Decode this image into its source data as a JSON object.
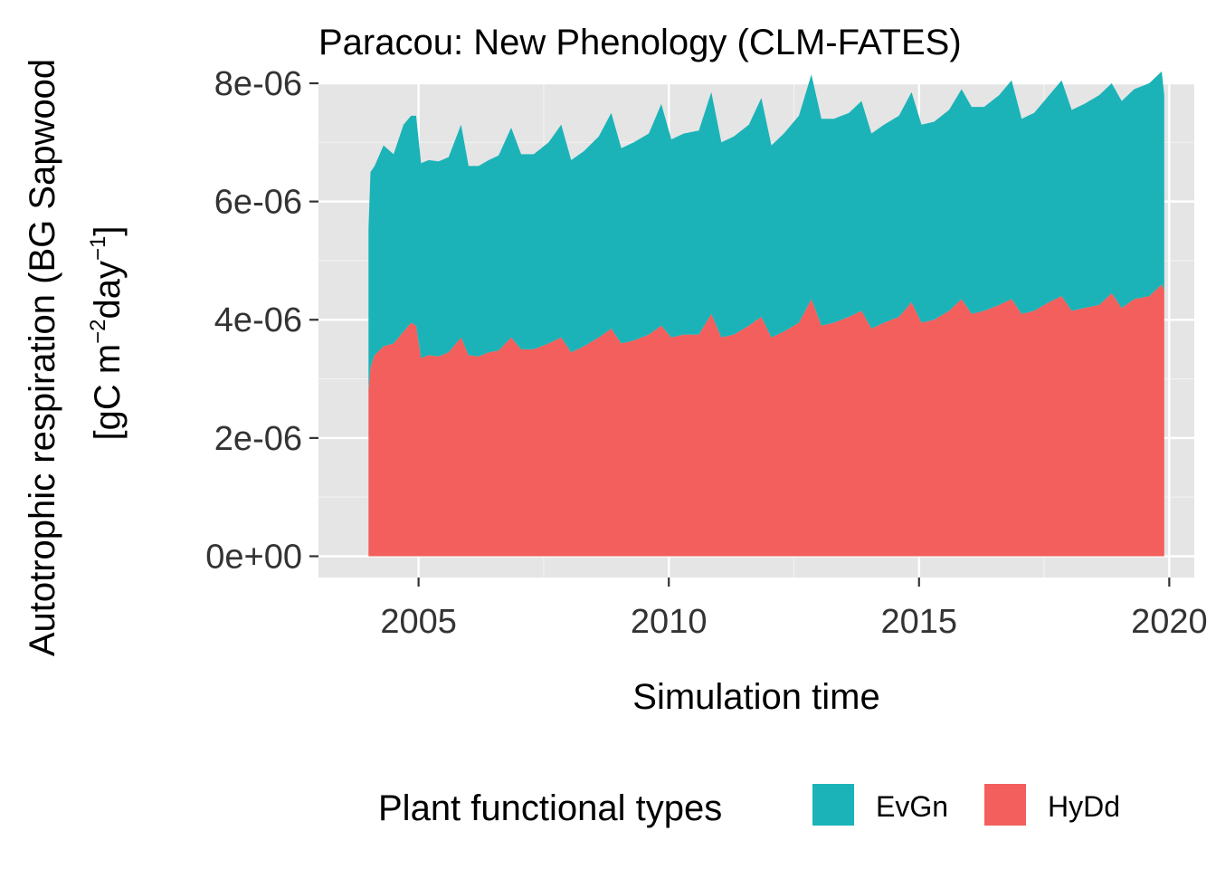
{
  "chart_data": {
    "type": "area",
    "stacked": true,
    "title": "Paracou: New Phenology (CLM-FATES)",
    "xlabel": "Simulation time",
    "ylabel_line1": "Autotrophic respiration (BG Sapwood",
    "ylabel_line2_main": "[gC m",
    "ylabel_line2_sup1": "−2",
    "ylabel_line2_mid": "day",
    "ylabel_line2_sup2": "−1",
    "ylabel_line2_end": "]",
    "xlim": [
      2003.0,
      2020.5
    ],
    "ylim": [
      -3.6e-07,
      8e-06
    ],
    "x_ticks": [
      2005,
      2010,
      2015,
      2020
    ],
    "x_tick_labels": [
      "2005",
      "2010",
      "2015",
      "2020"
    ],
    "y_ticks": [
      0,
      2e-06,
      4e-06,
      6e-06,
      8e-06
    ],
    "y_tick_labels": [
      "0e+00",
      "2e-06",
      "4e-06",
      "6e-06",
      "8e-06"
    ],
    "grid": true,
    "background": "#e5e5e5",
    "legend": {
      "title": "Plant functional types",
      "position": "bottom",
      "entries": [
        "EvGn",
        "HyDd"
      ]
    },
    "series": [
      {
        "name": "HyDd",
        "color": "#f25f5c",
        "x": [
          2004.0,
          2004.04,
          2004.12,
          2004.3,
          2004.5,
          2004.7,
          2004.85,
          2004.95,
          2005.05,
          2005.2,
          2005.4,
          2005.6,
          2005.85,
          2006.0,
          2006.2,
          2006.4,
          2006.6,
          2006.85,
          2007.05,
          2007.3,
          2007.6,
          2007.85,
          2008.05,
          2008.3,
          2008.6,
          2008.85,
          2009.05,
          2009.3,
          2009.6,
          2009.85,
          2010.05,
          2010.3,
          2010.6,
          2010.85,
          2011.05,
          2011.3,
          2011.6,
          2011.85,
          2012.05,
          2012.3,
          2012.6,
          2012.85,
          2013.05,
          2013.3,
          2013.6,
          2013.85,
          2014.05,
          2014.3,
          2014.6,
          2014.85,
          2015.05,
          2015.3,
          2015.6,
          2015.85,
          2016.05,
          2016.3,
          2016.6,
          2016.85,
          2017.05,
          2017.3,
          2017.6,
          2017.85,
          2018.05,
          2018.3,
          2018.6,
          2018.85,
          2019.05,
          2019.3,
          2019.6,
          2019.85,
          2019.9
        ],
        "values": [
          2.8e-06,
          3.2e-06,
          3.4e-06,
          3.55e-06,
          3.6e-06,
          3.8e-06,
          3.95e-06,
          3.9e-06,
          3.35e-06,
          3.4e-06,
          3.38e-06,
          3.45e-06,
          3.7e-06,
          3.4e-06,
          3.38e-06,
          3.45e-06,
          3.48e-06,
          3.7e-06,
          3.5e-06,
          3.5e-06,
          3.6e-06,
          3.7e-06,
          3.45e-06,
          3.55e-06,
          3.7e-06,
          3.85e-06,
          3.6e-06,
          3.65e-06,
          3.75e-06,
          3.9e-06,
          3.7e-06,
          3.75e-06,
          3.75e-06,
          4.1e-06,
          3.7e-06,
          3.75e-06,
          3.9e-06,
          4.05e-06,
          3.7e-06,
          3.8e-06,
          3.95e-06,
          4.35e-06,
          3.9e-06,
          3.95e-06,
          4.05e-06,
          4.15e-06,
          3.85e-06,
          3.95e-06,
          4.05e-06,
          4.3e-06,
          3.95e-06,
          4e-06,
          4.15e-06,
          4.35e-06,
          4.1e-06,
          4.15e-06,
          4.25e-06,
          4.35e-06,
          4.1e-06,
          4.15e-06,
          4.3e-06,
          4.4e-06,
          4.15e-06,
          4.2e-06,
          4.25e-06,
          4.45e-06,
          4.2e-06,
          4.35e-06,
          4.4e-06,
          4.6e-06,
          4.5e-06
        ]
      },
      {
        "name": "EvGn",
        "color": "#1bb3b8",
        "x": [
          2004.0,
          2004.04,
          2004.12,
          2004.3,
          2004.5,
          2004.7,
          2004.85,
          2004.95,
          2005.05,
          2005.2,
          2005.4,
          2005.6,
          2005.85,
          2006.0,
          2006.2,
          2006.4,
          2006.6,
          2006.85,
          2007.05,
          2007.3,
          2007.6,
          2007.85,
          2008.05,
          2008.3,
          2008.6,
          2008.85,
          2009.05,
          2009.3,
          2009.6,
          2009.85,
          2010.05,
          2010.3,
          2010.6,
          2010.85,
          2011.05,
          2011.3,
          2011.6,
          2011.85,
          2012.05,
          2012.3,
          2012.6,
          2012.85,
          2013.05,
          2013.3,
          2013.6,
          2013.85,
          2014.05,
          2014.3,
          2014.6,
          2014.85,
          2015.05,
          2015.3,
          2015.6,
          2015.85,
          2016.05,
          2016.3,
          2016.6,
          2016.85,
          2017.05,
          2017.3,
          2017.6,
          2017.85,
          2018.05,
          2018.3,
          2018.6,
          2018.85,
          2019.05,
          2019.3,
          2019.6,
          2019.85,
          2019.9
        ],
        "values": [
          2.75e-06,
          3.3e-06,
          3.2e-06,
          3.4e-06,
          3.2e-06,
          3.5e-06,
          3.5e-06,
          3.55e-06,
          3.3e-06,
          3.3e-06,
          3.3e-06,
          3.3e-06,
          3.6e-06,
          3.2e-06,
          3.22e-06,
          3.25e-06,
          3.3e-06,
          3.55e-06,
          3.3e-06,
          3.3e-06,
          3.4e-06,
          3.6e-06,
          3.25e-06,
          3.3e-06,
          3.4e-06,
          3.65e-06,
          3.3e-06,
          3.35e-06,
          3.4e-06,
          3.75e-06,
          3.35e-06,
          3.4e-06,
          3.45e-06,
          3.75e-06,
          3.3e-06,
          3.35e-06,
          3.4e-06,
          3.7e-06,
          3.25e-06,
          3.35e-06,
          3.5e-06,
          3.8e-06,
          3.5e-06,
          3.45e-06,
          3.45e-06,
          3.55e-06,
          3.3e-06,
          3.35e-06,
          3.4e-06,
          3.55e-06,
          3.35e-06,
          3.35e-06,
          3.4e-06,
          3.55e-06,
          3.5e-06,
          3.45e-06,
          3.55e-06,
          3.7e-06,
          3.3e-06,
          3.35e-06,
          3.5e-06,
          3.65e-06,
          3.4e-06,
          3.45e-06,
          3.55e-06,
          3.55e-06,
          3.5e-06,
          3.55e-06,
          3.6e-06,
          3.6e-06,
          3.3e-06
        ]
      }
    ]
  }
}
